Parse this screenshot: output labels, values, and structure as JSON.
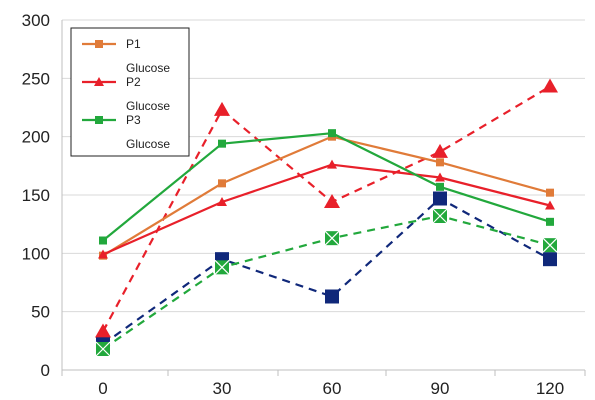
{
  "chart_data": {
    "type": "line",
    "title": "",
    "xlabel": "",
    "ylabel": "",
    "categories": [
      "0",
      "30",
      "60",
      "90",
      "120"
    ],
    "ylim": [
      0,
      300
    ],
    "yticks": [
      0,
      50,
      100,
      150,
      200,
      250,
      300
    ],
    "grid": "horizontal",
    "legend_position": "top-left",
    "series": [
      {
        "name": "P1 Glucose",
        "name_lines": [
          "P1",
          "Glucose"
        ],
        "color": "#e07b39",
        "marker": "square",
        "dash": false,
        "in_legend": true,
        "values": [
          98,
          160,
          200,
          178,
          152
        ]
      },
      {
        "name": "P2 Glucose",
        "name_lines": [
          "P2",
          "Glucose"
        ],
        "color": "#e8202a",
        "marker": "triangle",
        "dash": false,
        "in_legend": true,
        "values": [
          99,
          144,
          176,
          165,
          141
        ]
      },
      {
        "name": "P3 Glucose",
        "name_lines": [
          "P3",
          "Glucose"
        ],
        "color": "#22a83c",
        "marker": "square",
        "dash": false,
        "in_legend": true,
        "values": [
          111,
          194,
          203,
          157,
          127
        ]
      },
      {
        "color": "#e8202a",
        "marker": "triangle-large",
        "dash": true,
        "in_legend": false,
        "values": [
          33,
          223,
          144,
          187,
          243
        ]
      },
      {
        "color": "#10287a",
        "marker": "square-large",
        "dash": true,
        "in_legend": false,
        "values": [
          22,
          95,
          63,
          147,
          95
        ]
      },
      {
        "color": "#22a83c",
        "marker": "square-x",
        "dash": true,
        "in_legend": false,
        "values": [
          18,
          88,
          113,
          132,
          107
        ]
      }
    ]
  }
}
